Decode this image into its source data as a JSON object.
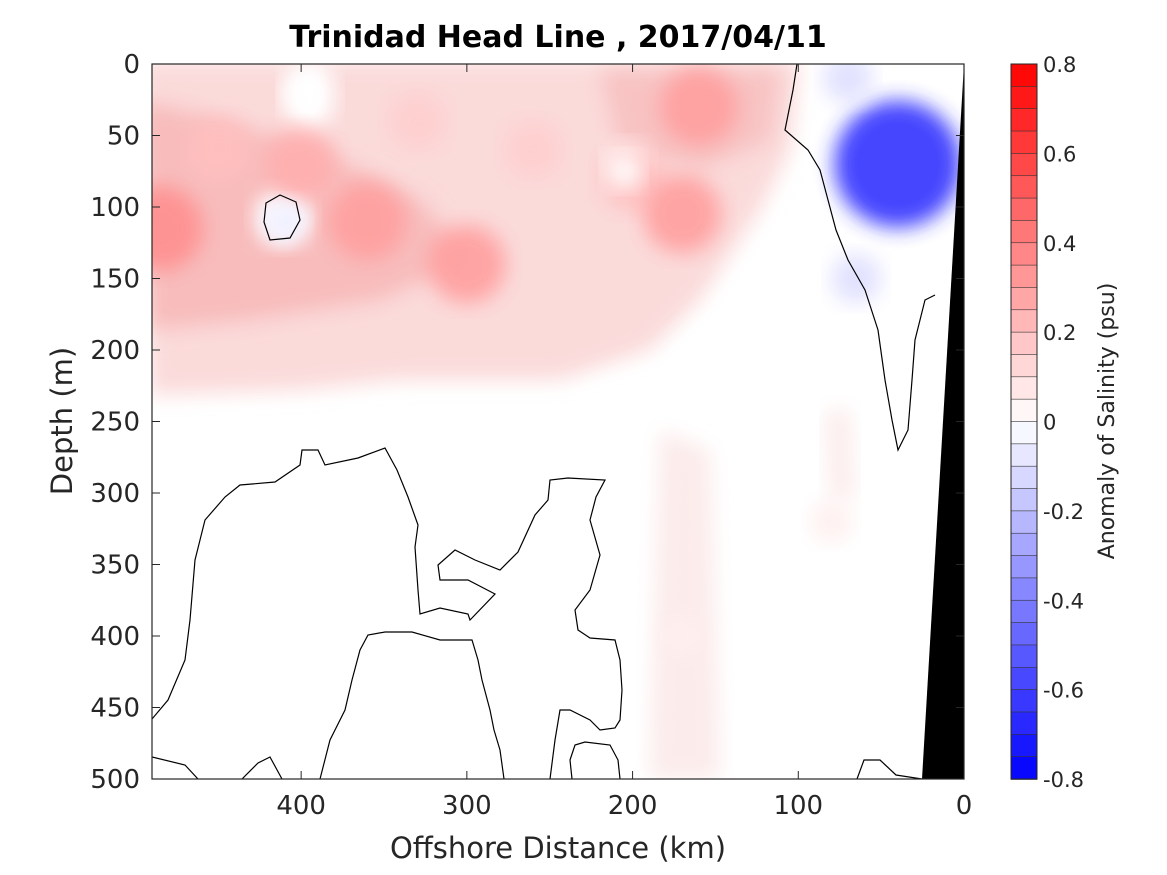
{
  "chart_data": {
    "type": "heatmap",
    "title": "Trinidad Head Line , 2017/04/11",
    "xlabel": "Offshore Distance (km)",
    "ylabel": "Depth (m)",
    "xlim": [
      490,
      0
    ],
    "ylim": [
      0,
      500
    ],
    "x_ticks": [
      "400",
      "300",
      "200",
      "100",
      "0"
    ],
    "x_tick_values": [
      400,
      300,
      200,
      100,
      0
    ],
    "y_ticks": [
      "0",
      "50",
      "100",
      "150",
      "200",
      "250",
      "300",
      "350",
      "400",
      "450",
      "500"
    ],
    "y_tick_values": [
      0,
      50,
      100,
      150,
      200,
      250,
      300,
      350,
      400,
      450,
      500
    ],
    "colorbar": {
      "label": "Anomaly of Salinity (psu)",
      "range": [
        -0.8,
        0.8
      ],
      "step": 0.05,
      "ticks": [
        "0.8",
        "0.6",
        "0.4",
        "0.2",
        "0",
        "-0.2",
        "-0.4",
        "-0.6",
        "-0.8"
      ],
      "tick_values": [
        0.8,
        0.6,
        0.4,
        0.2,
        0,
        -0.2,
        -0.4,
        -0.6,
        -0.8
      ],
      "positive_color": "#ff0000",
      "negative_color": "#0000ff",
      "zero_color": "#ffffff"
    },
    "grid": false,
    "zero_contour": true,
    "bathymetry_color": "#000000",
    "features": [
      {
        "x": 485,
        "depth": 115,
        "anomaly": 0.35
      },
      {
        "x": 360,
        "depth": 110,
        "anomaly": 0.3
      },
      {
        "x": 300,
        "depth": 140,
        "anomaly": 0.3
      },
      {
        "x": 400,
        "depth": 70,
        "anomaly": 0.25
      },
      {
        "x": 450,
        "depth": 60,
        "anomaly": 0.2
      },
      {
        "x": 200,
        "depth": 80,
        "anomaly": 0.2
      },
      {
        "x": 160,
        "depth": 30,
        "anomaly": 0.3
      },
      {
        "x": 170,
        "depth": 105,
        "anomaly": 0.3
      },
      {
        "x": 260,
        "depth": 60,
        "anomaly": 0.15
      },
      {
        "x": 330,
        "depth": 40,
        "anomaly": 0.15
      },
      {
        "x": 410,
        "depth": 110,
        "anomaly": -0.05
      },
      {
        "x": 400,
        "depth": 20,
        "anomaly": 0.0
      },
      {
        "x": 205,
        "depth": 75,
        "anomaly": 0.0
      },
      {
        "x": 40,
        "depth": 70,
        "anomaly": -0.65
      },
      {
        "x": 70,
        "depth": 10,
        "anomaly": -0.1
      },
      {
        "x": 65,
        "depth": 150,
        "anomaly": -0.1
      },
      {
        "x": 170,
        "depth": 400,
        "anomaly": 0.05
      },
      {
        "x": 80,
        "depth": 320,
        "anomaly": 0.05
      }
    ]
  }
}
